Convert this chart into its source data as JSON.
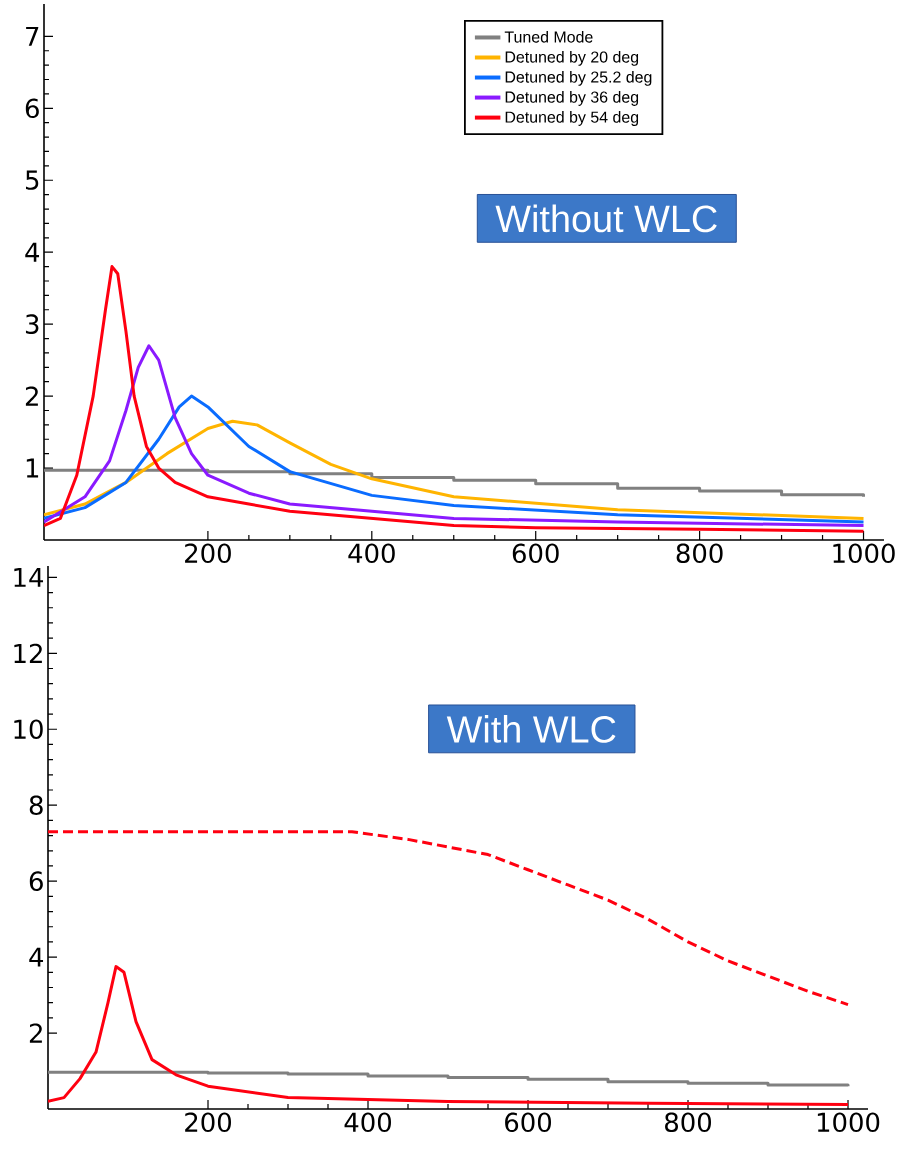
{
  "chart_data": [
    {
      "type": "line",
      "xlim": [
        0,
        1025
      ],
      "ylim": [
        0,
        7.45
      ],
      "xticks": [
        200,
        400,
        600,
        800,
        1000
      ],
      "yticks": [
        1,
        2,
        3,
        4,
        5,
        6,
        7
      ],
      "legend": "top right",
      "annotations": [
        "Without WLC"
      ],
      "series": [
        {
          "name": "Tuned Mode",
          "type": "step",
          "color": "#808080",
          "x": [
            0,
            200,
            300,
            400,
            500,
            600,
            700,
            800,
            900,
            1000
          ],
          "values": [
            0.97,
            0.95,
            0.92,
            0.87,
            0.83,
            0.78,
            0.72,
            0.68,
            0.63,
            0.6
          ]
        },
        {
          "name": "Detuned by 20 deg",
          "color": "#ffb400",
          "x": [
            0,
            50,
            100,
            150,
            200,
            230,
            260,
            300,
            350,
            400,
            500,
            700,
            1000
          ],
          "values": [
            0.35,
            0.5,
            0.8,
            1.2,
            1.55,
            1.65,
            1.6,
            1.35,
            1.05,
            0.85,
            0.6,
            0.42,
            0.3
          ]
        },
        {
          "name": "Detuned by 25.2 deg",
          "color": "#0a6cff",
          "x": [
            0,
            50,
            100,
            140,
            165,
            180,
            200,
            250,
            300,
            400,
            500,
            700,
            1000
          ],
          "values": [
            0.3,
            0.45,
            0.8,
            1.4,
            1.85,
            2.0,
            1.85,
            1.3,
            0.95,
            0.62,
            0.48,
            0.35,
            0.25
          ]
        },
        {
          "name": "Detuned by 36 deg",
          "color": "#8a1aff",
          "x": [
            0,
            50,
            80,
            100,
            115,
            128,
            140,
            160,
            180,
            200,
            250,
            300,
            400,
            500,
            700,
            1000
          ],
          "values": [
            0.25,
            0.6,
            1.1,
            1.8,
            2.4,
            2.7,
            2.5,
            1.7,
            1.2,
            0.9,
            0.65,
            0.5,
            0.4,
            0.3,
            0.25,
            0.2
          ]
        },
        {
          "name": "Detuned by  54 deg",
          "color": "#ff0010",
          "x": [
            0,
            20,
            40,
            60,
            75,
            83,
            90,
            100,
            110,
            125,
            140,
            160,
            200,
            250,
            300,
            400,
            500,
            600,
            800,
            1000
          ],
          "values": [
            0.2,
            0.3,
            0.9,
            2.0,
            3.2,
            3.8,
            3.7,
            2.9,
            2.0,
            1.3,
            1.0,
            0.8,
            0.6,
            0.5,
            0.4,
            0.3,
            0.2,
            0.17,
            0.15,
            0.12
          ]
        }
      ]
    },
    {
      "type": "line",
      "xlim": [
        0,
        1025
      ],
      "ylim": [
        0,
        14.3
      ],
      "xticks": [
        200,
        400,
        600,
        800,
        1000
      ],
      "yticks": [
        2,
        4,
        6,
        8,
        10,
        12,
        14
      ],
      "annotations": [
        "With WLC"
      ],
      "series": [
        {
          "type": "step",
          "color": "#808080",
          "x": [
            0,
            200,
            300,
            400,
            500,
            600,
            700,
            800,
            900,
            1000
          ],
          "values": [
            0.97,
            0.95,
            0.92,
            0.87,
            0.83,
            0.78,
            0.72,
            0.68,
            0.63,
            0.6
          ]
        },
        {
          "color": "#ff0010",
          "x": [
            0,
            20,
            40,
            60,
            75,
            85,
            95,
            110,
            130,
            160,
            200,
            250,
            300,
            400,
            500,
            750,
            1000
          ],
          "values": [
            0.2,
            0.3,
            0.8,
            1.5,
            2.8,
            3.75,
            3.6,
            2.3,
            1.3,
            0.9,
            0.6,
            0.45,
            0.3,
            0.25,
            0.2,
            0.15,
            0.12
          ]
        },
        {
          "color": "#ff0010",
          "line_style": "dashed",
          "x": [
            0,
            100,
            200,
            300,
            380,
            450,
            500,
            550,
            600,
            650,
            700,
            750,
            800,
            850,
            900,
            950,
            1000
          ],
          "values": [
            7.3,
            7.3,
            7.3,
            7.3,
            7.3,
            7.1,
            6.9,
            6.7,
            6.3,
            5.9,
            5.5,
            5.0,
            4.4,
            3.9,
            3.5,
            3.1,
            2.75
          ]
        }
      ]
    }
  ]
}
